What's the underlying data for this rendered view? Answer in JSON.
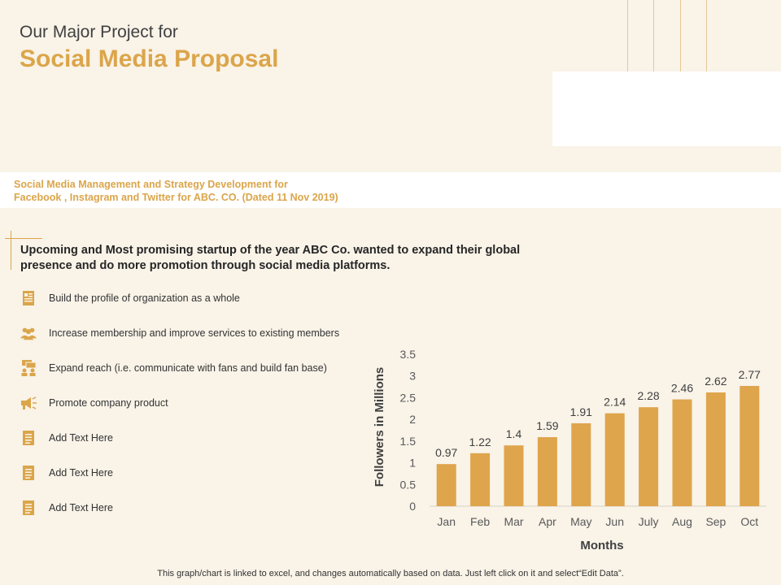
{
  "header": {
    "title_line1": "Our Major Project for",
    "title_line2": "Social Media Proposal"
  },
  "subtitle": {
    "line1": "Social Media Management and Strategy Development for",
    "line2": "Facebook , Instagram and Twitter for ABC. CO. (Dated 11 Nov 2019)"
  },
  "intro": "Upcoming and Most promising startup of the year ABC Co. wanted to expand their global presence and do more promotion through social media platforms.",
  "bullets": [
    {
      "label": "Build the profile  of organization  as a whole",
      "icon": "profile-document-icon"
    },
    {
      "label": "Increase membership  and improve  services to existing members",
      "icon": "people-group-icon"
    },
    {
      "label": "Expand reach (i.e. communicate with fans and build fan base)",
      "icon": "chat-people-icon"
    },
    {
      "label": "Promote  company product",
      "icon": "megaphone-icon"
    },
    {
      "label": "Add Text Here",
      "icon": "document-icon"
    },
    {
      "label": "Add Text Here",
      "icon": "document-icon"
    },
    {
      "label": "Add Text Here",
      "icon": "document-icon"
    }
  ],
  "colors": {
    "accent": "#dba54a",
    "bar": "#dfa54c",
    "background": "#f9f3e8"
  },
  "chart_data": {
    "type": "bar",
    "categories": [
      "Jan",
      "Feb",
      "Mar",
      "Apr",
      "May",
      "Jun",
      "July",
      "Aug",
      "Sep",
      "Oct"
    ],
    "values": [
      0.97,
      1.22,
      1.4,
      1.59,
      1.91,
      2.14,
      2.28,
      2.46,
      2.62,
      2.77
    ],
    "ylim": [
      0,
      3.5
    ],
    "yticks": [
      "0",
      "0.5",
      "1",
      "1.5",
      "2",
      "2.5",
      "3",
      "3.5"
    ],
    "xlabel": "Months",
    "ylabel": "Followers in Millions",
    "title": ""
  },
  "footer": "This graph/chart is linked to excel,  and changes automatically based on data. Just left click on it and select“Edit Data”."
}
